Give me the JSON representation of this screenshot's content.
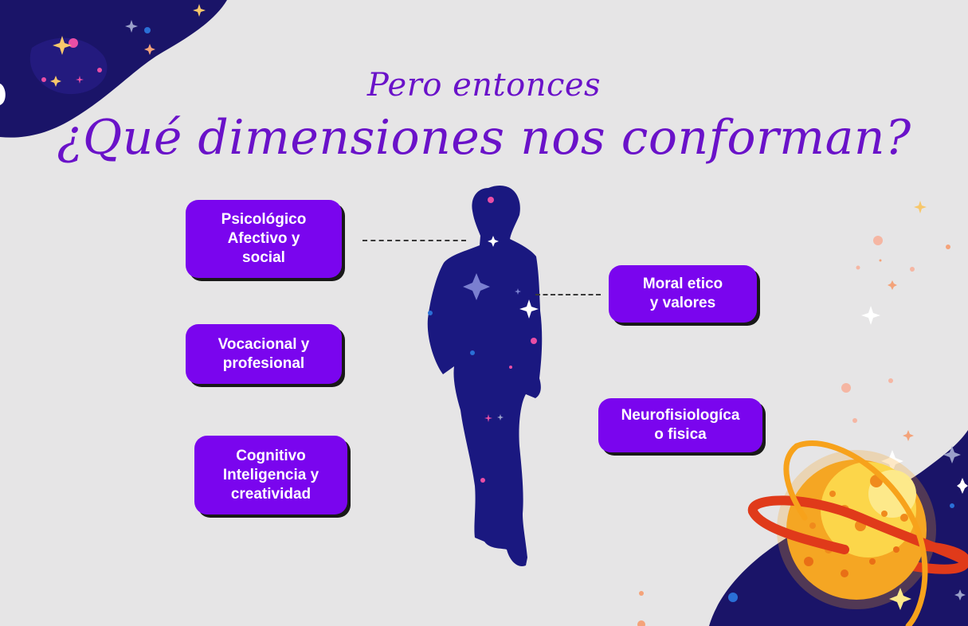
{
  "heading": {
    "subtitle": "Pero entonces",
    "title": "¿Qué dimensiones nos conforman?"
  },
  "dimensions": {
    "psicologico": "Psicológico\nAfectivo y\nsocial",
    "vocacional": "Vocacional y\nprofesional",
    "cognitivo": "Cognitivo\nInteligencia y\ncreatividad",
    "moral": "Moral etico\ny valores",
    "neuro": "Neurofisiologíca\no fisica"
  },
  "colors": {
    "background": "#e6e5e6",
    "accent": "#7a05ee",
    "title": "#6a12c9",
    "space": "#1a1468",
    "planet": "#f7a21b"
  }
}
